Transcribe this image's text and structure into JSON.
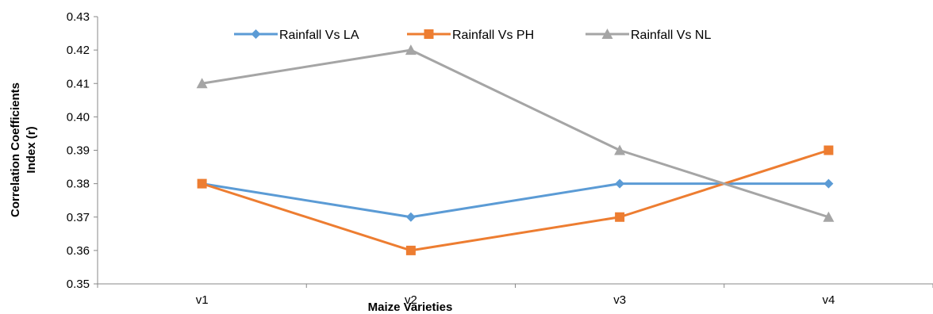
{
  "chart_data": {
    "type": "line",
    "title": "",
    "xlabel": "Maize Varieties",
    "ylabel_lines": [
      "Correlation Coefficients",
      "Index (r)"
    ],
    "categories": [
      "v1",
      "v2",
      "v3",
      "v4"
    ],
    "ylim": [
      0.35,
      0.43
    ],
    "yticks": [
      "0.35",
      "0.36",
      "0.37",
      "0.38",
      "0.39",
      "0.40",
      "0.41",
      "0.42",
      "0.43"
    ],
    "grid": false,
    "legend_position": "top",
    "series": [
      {
        "name": "Rainfall Vs LA",
        "values": [
          0.38,
          0.37,
          0.38,
          0.38
        ],
        "color": "#5B9BD5",
        "marker": "diamond"
      },
      {
        "name": "Rainfall Vs PH",
        "values": [
          0.38,
          0.36,
          0.37,
          0.39
        ],
        "color": "#ED7D31",
        "marker": "square"
      },
      {
        "name": "Rainfall Vs NL",
        "values": [
          0.41,
          0.42,
          0.39,
          0.37
        ],
        "color": "#A5A5A5",
        "marker": "triangle"
      }
    ]
  }
}
